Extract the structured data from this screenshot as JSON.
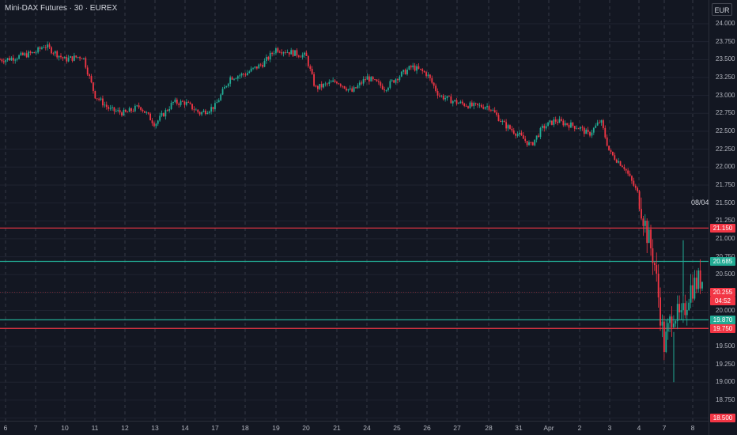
{
  "header": {
    "symbol_title": "Mini-DAX Futures · 30 · EUREX",
    "currency": "EUR",
    "crosshair_date": "08/04."
  },
  "price_axis": {
    "ticks": [
      "24.000",
      "23.750",
      "23.500",
      "23.250",
      "23.000",
      "22.750",
      "22.500",
      "22.250",
      "22.000",
      "21.750",
      "21.500",
      "21.250",
      "21.000",
      "20.750",
      "20.500",
      "20.250",
      "20.000",
      "19.750",
      "19.500",
      "19.250",
      "19.000",
      "18.750",
      "18.500"
    ]
  },
  "time_axis": {
    "labels": [
      "6",
      "7",
      "10",
      "11",
      "12",
      "13",
      "14",
      "17",
      "18",
      "19",
      "20",
      "21",
      "24",
      "25",
      "26",
      "27",
      "28",
      "31",
      "Apr",
      "2",
      "3",
      "4",
      "7",
      "8"
    ]
  },
  "levels": [
    {
      "price": 21.15,
      "label": "21.150",
      "color": "#f23645"
    },
    {
      "price": 20.685,
      "label": "20.685",
      "color": "#22ab94"
    },
    {
      "price": 19.87,
      "label": "19.870",
      "color": "#22ab94"
    },
    {
      "price": 19.75,
      "label": "19.750",
      "color": "#f23645"
    }
  ],
  "last_price": {
    "label": "20.255",
    "countdown": "04:52",
    "color": "#f23645"
  },
  "bottom_badge": {
    "label": "18.500",
    "color": "#f23645"
  },
  "colors": {
    "up": "#22ab94",
    "down": "#f23645",
    "background": "#131722",
    "grid": "#2a2e39"
  },
  "chart_data": {
    "type": "candlestick",
    "title": "Mini-DAX Futures · 30 · EUREX",
    "ylim": [
      18.5,
      24.0
    ],
    "close_path": [
      [
        0,
        23.5
      ],
      [
        0.5,
        23.55
      ],
      [
        1,
        23.6
      ],
      [
        1.3,
        23.7
      ],
      [
        2,
        23.5
      ],
      [
        2.6,
        23.55
      ],
      [
        3,
        23.0
      ],
      [
        3.5,
        22.8
      ],
      [
        4,
        22.75
      ],
      [
        4.5,
        22.85
      ],
      [
        5,
        22.6
      ],
      [
        5.6,
        22.9
      ],
      [
        6,
        22.9
      ],
      [
        6.5,
        22.75
      ],
      [
        7,
        22.85
      ],
      [
        7.5,
        23.25
      ],
      [
        8,
        23.3
      ],
      [
        8.6,
        23.45
      ],
      [
        9,
        23.65
      ],
      [
        9.5,
        23.6
      ],
      [
        10,
        23.55
      ],
      [
        10.3,
        23.1
      ],
      [
        11,
        23.2
      ],
      [
        11.5,
        23.05
      ],
      [
        12,
        23.25
      ],
      [
        12.6,
        23.1
      ],
      [
        13,
        23.25
      ],
      [
        13.5,
        23.4
      ],
      [
        14,
        23.3
      ],
      [
        14.4,
        23.0
      ],
      [
        15,
        22.9
      ],
      [
        15.5,
        22.85
      ],
      [
        16,
        22.85
      ],
      [
        16.5,
        22.6
      ],
      [
        17,
        22.45
      ],
      [
        17.4,
        22.3
      ],
      [
        17.8,
        22.55
      ],
      [
        18.2,
        22.65
      ],
      [
        18.6,
        22.6
      ],
      [
        19,
        22.55
      ],
      [
        19.3,
        22.45
      ],
      [
        19.7,
        22.65
      ],
      [
        20,
        22.2
      ],
      [
        20.5,
        22.0
      ],
      [
        21,
        21.6
      ],
      [
        21.3,
        21.1
      ],
      [
        21.6,
        20.7
      ],
      [
        22,
        19.5
      ],
      [
        22.3,
        20.0
      ],
      [
        22.6,
        19.85
      ],
      [
        22.9,
        20.3
      ],
      [
        23.3,
        20.45
      ],
      [
        23.6,
        20.25
      ]
    ],
    "extremes": {
      "high_spike": 20.98,
      "low_spike": 19.0
    }
  }
}
